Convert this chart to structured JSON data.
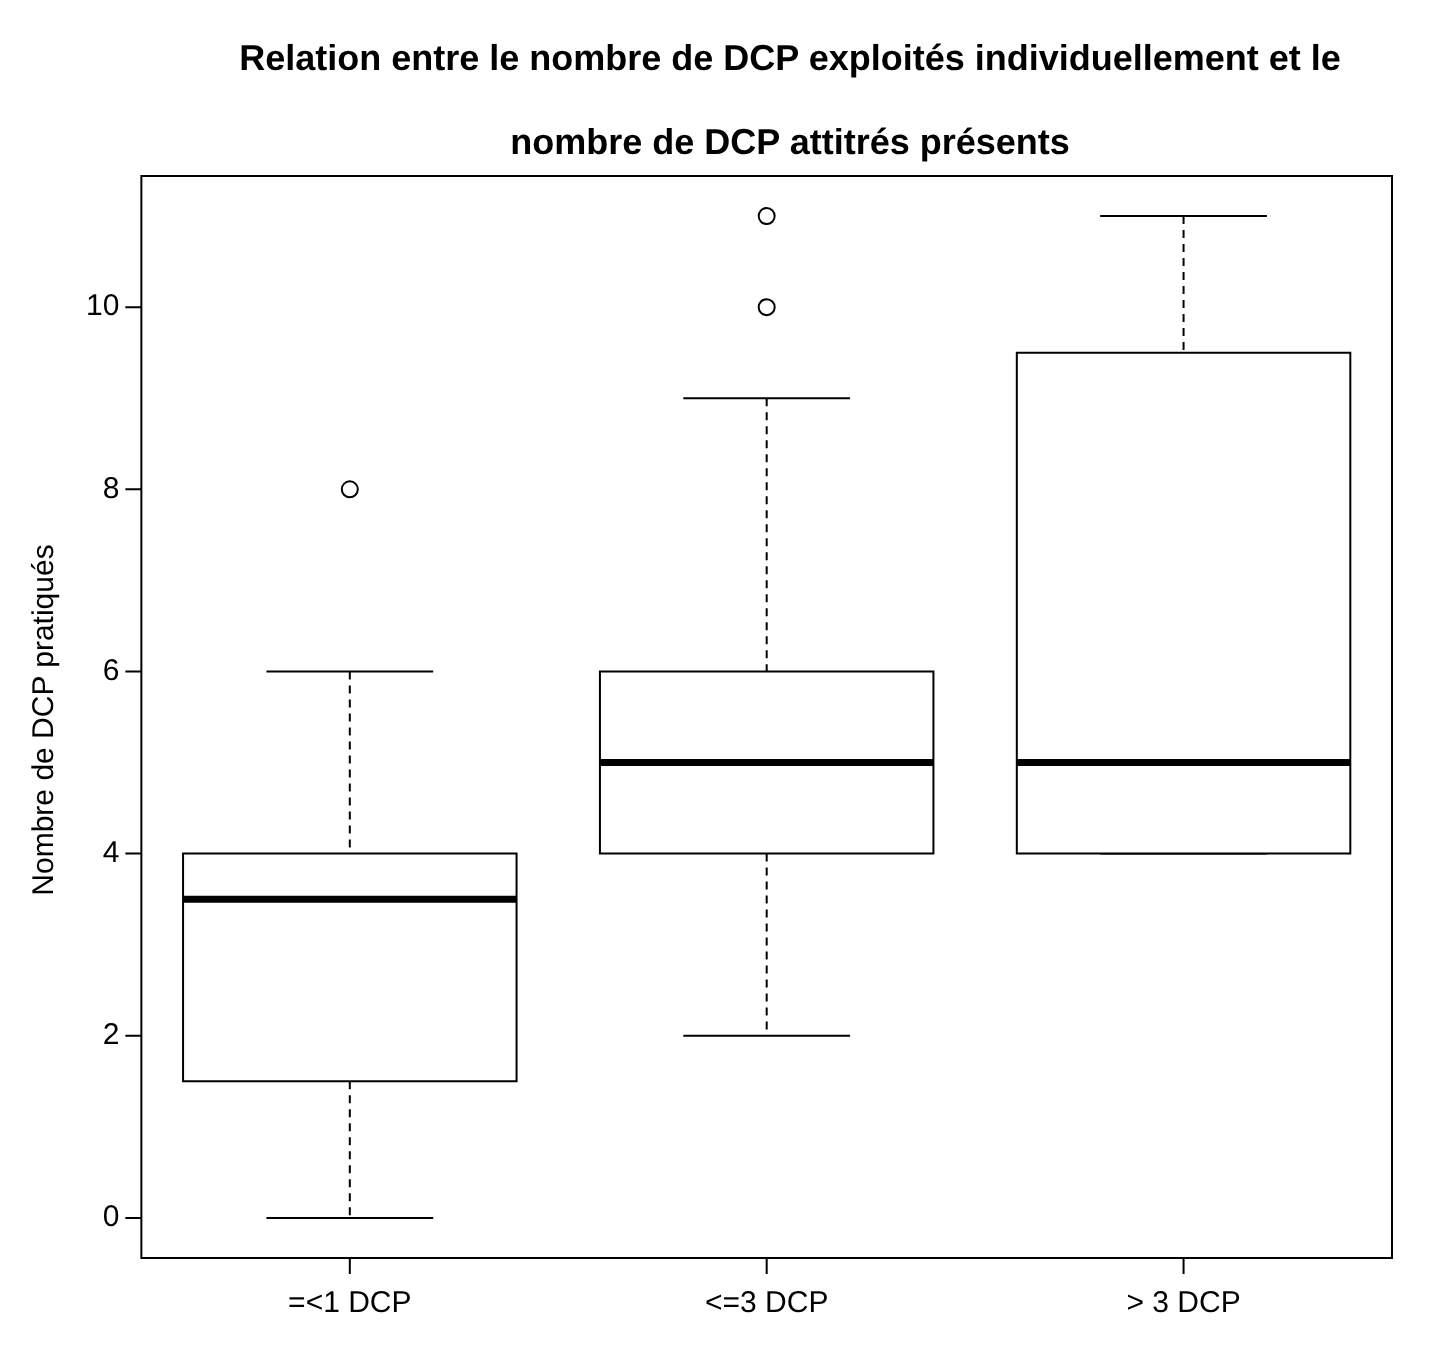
{
  "chart_data": {
    "type": "box",
    "title": "Relation entre le nombre de DCP exploités individuellement et le nombre de DCP attitrés présents",
    "ylabel": "Nombre de DCP pratiqués",
    "categories": [
      "=<1 DCP",
      "<=3 DCP",
      "> 3 DCP"
    ],
    "boxes": [
      {
        "low": 0,
        "q1": 1.5,
        "median": 3.5,
        "q3": 4,
        "high": 6,
        "outliers": [
          8
        ]
      },
      {
        "low": 2,
        "q1": 4,
        "median": 5,
        "q3": 6,
        "high": 9,
        "outliers": [
          10,
          11
        ]
      },
      {
        "low": 4,
        "q1": 4,
        "median": 5,
        "q3": 9.5,
        "high": 11
      }
    ],
    "ylim": [
      -0.44,
      11.44
    ],
    "yticks": [
      0,
      2,
      4,
      6,
      8,
      10
    ],
    "grid": false,
    "legend": false
  }
}
